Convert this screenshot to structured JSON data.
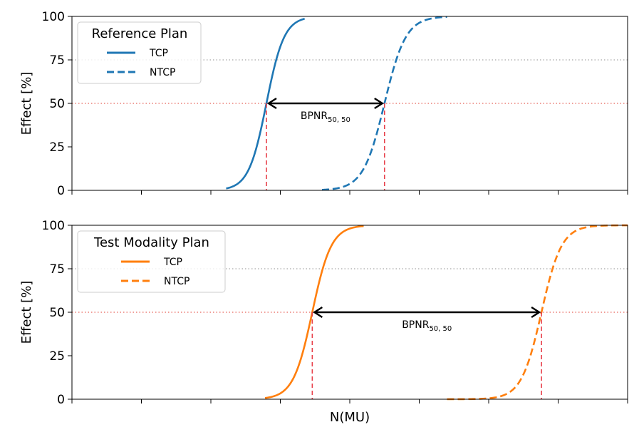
{
  "chart_data": [
    {
      "type": "line",
      "panel": "top",
      "legend_title": "Reference Plan",
      "legend_placement": "top-left",
      "ylabel": "Effect [%]",
      "xlabel": "",
      "xlim": [
        0,
        8
      ],
      "ylim": [
        0,
        100
      ],
      "yticks": [
        0,
        25,
        50,
        75,
        100
      ],
      "ytick_labels": [
        "0",
        "25",
        "50",
        "75",
        "100"
      ],
      "xticks": [
        0,
        1,
        2,
        3,
        4,
        5,
        6,
        7,
        8
      ],
      "reference_lines_y": [
        50,
        75
      ],
      "series": [
        {
          "name": "TCP",
          "style": "solid",
          "color": "#1f77b4",
          "x_start": 2.22,
          "x_end": 3.35,
          "d50": 2.8,
          "k": 7.8
        },
        {
          "name": "NTCP",
          "style": "dashed",
          "color": "#1f77b4",
          "x_start": 3.6,
          "x_end": 5.4,
          "d50": 4.5,
          "k": 6.5
        }
      ],
      "annotation": {
        "base": "BPNR",
        "subscript": "50, 50",
        "y": 50,
        "x_from": 2.8,
        "x_to": 4.5
      }
    },
    {
      "type": "line",
      "panel": "bottom",
      "legend_title": "Test Modality Plan",
      "legend_placement": "top-left",
      "ylabel": "Effect [%]",
      "xlabel": "N(MU)",
      "xlim": [
        0,
        8
      ],
      "ylim": [
        0,
        100
      ],
      "yticks": [
        0,
        25,
        50,
        75,
        100
      ],
      "ytick_labels": [
        "0",
        "25",
        "50",
        "75",
        "100"
      ],
      "xticks": [
        0,
        1,
        2,
        3,
        4,
        5,
        6,
        7,
        8
      ],
      "reference_lines_y": [
        50,
        75
      ],
      "series": [
        {
          "name": "TCP",
          "style": "solid",
          "color": "#ff7f0e",
          "x_start": 2.78,
          "x_end": 4.2,
          "d50": 3.46,
          "k": 7.3
        },
        {
          "name": "NTCP",
          "style": "dashed",
          "color": "#ff7f0e",
          "x_start": 5.4,
          "x_end": 8.0,
          "d50": 6.76,
          "k": 6.9
        }
      ],
      "annotation": {
        "base": "BPNR",
        "subscript": "50, 50",
        "y": 50,
        "x_from": 3.46,
        "x_to": 6.76
      }
    }
  ]
}
